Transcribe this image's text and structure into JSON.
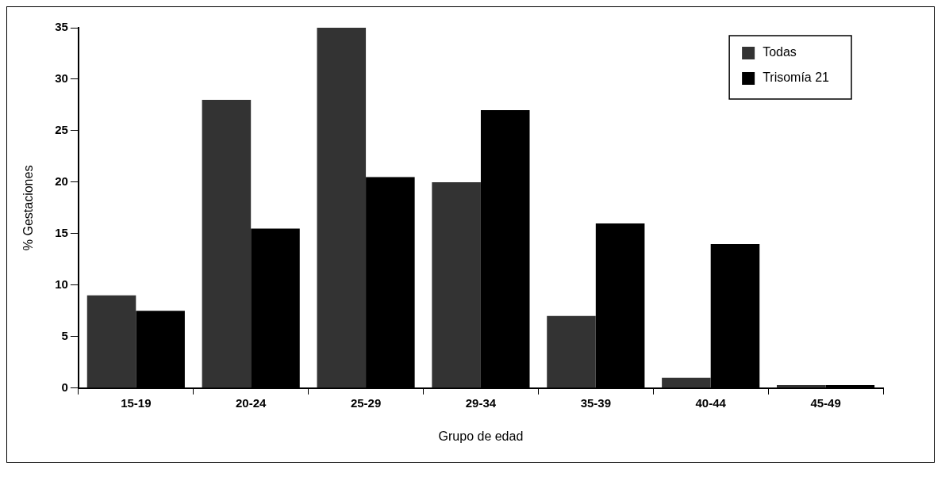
{
  "chart_data": {
    "type": "bar",
    "xlabel": "Grupo de edad",
    "ylabel": "% Gestaciones",
    "categories": [
      "15-19",
      "20-24",
      "25-29",
      "29-34",
      "35-39",
      "40-44",
      "45-49"
    ],
    "series": [
      {
        "name": "Todas",
        "color": "#333333",
        "values": [
          9,
          28,
          35,
          20,
          7,
          1,
          0.3
        ]
      },
      {
        "name": "Trisomía 21",
        "color": "#000000",
        "values": [
          7.5,
          15.5,
          20.5,
          27,
          16,
          14,
          0.3
        ]
      }
    ],
    "ylim": [
      0,
      35
    ],
    "yticks": [
      0,
      5,
      10,
      15,
      20,
      25,
      30,
      35
    ],
    "grid": false,
    "legend": "top right"
  }
}
